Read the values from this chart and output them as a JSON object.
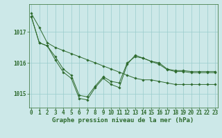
{
  "xlabel": "Graphe pression niveau de la mer (hPa)",
  "x": [
    0,
    1,
    2,
    3,
    4,
    5,
    6,
    7,
    8,
    9,
    10,
    11,
    12,
    13,
    14,
    15,
    16,
    17,
    18,
    19,
    20,
    21,
    22,
    23
  ],
  "series": [
    [
      1017.6,
      1017.15,
      1016.65,
      1016.5,
      1016.4,
      1016.3,
      1016.2,
      1016.1,
      1016.0,
      1015.9,
      1015.8,
      1015.7,
      1015.6,
      1015.5,
      1015.45,
      1015.45,
      1015.4,
      1015.35,
      1015.3,
      1015.3,
      1015.3,
      1015.3,
      1015.3,
      1015.3
    ],
    [
      1017.5,
      1016.65,
      1016.55,
      1016.2,
      1015.8,
      1015.6,
      1014.95,
      1014.9,
      1015.25,
      1015.55,
      1015.4,
      1015.35,
      1016.0,
      1016.2,
      1016.15,
      1016.05,
      1016.0,
      1015.8,
      1015.75,
      1015.75,
      1015.72,
      1015.72,
      1015.72,
      1015.72
    ],
    [
      1017.5,
      1016.65,
      1016.55,
      1016.1,
      1015.7,
      1015.5,
      1014.85,
      1014.8,
      1015.2,
      1015.5,
      1015.3,
      1015.2,
      1015.95,
      1016.25,
      1016.15,
      1016.05,
      1015.95,
      1015.78,
      1015.72,
      1015.72,
      1015.68,
      1015.68,
      1015.68,
      1015.68
    ]
  ],
  "line_color": "#2d6a2d",
  "bg_color": "#cce8e8",
  "grid_color": "#99cccc",
  "yticks": [
    1015,
    1016,
    1017
  ],
  "ylim": [
    1014.55,
    1017.9
  ],
  "xlim": [
    -0.3,
    23.3
  ],
  "marker": "D",
  "marker_size": 1.8,
  "linewidth": 0.7,
  "xlabel_fontsize": 6.5,
  "tick_fontsize": 5.5
}
